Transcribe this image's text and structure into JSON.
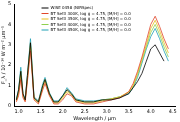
{
  "chart_data": {
    "type": "line",
    "x_label": "Wavelength / μm",
    "y_label": "F_λ / 10⁻¹⁶ W m⁻² μm⁻¹",
    "x": [
      0.95,
      1.0,
      1.05,
      1.1,
      1.15,
      1.2,
      1.27,
      1.35,
      1.45,
      1.55,
      1.6,
      1.7,
      1.8,
      1.9,
      2.0,
      2.1,
      2.2,
      2.3,
      2.5,
      2.7,
      2.9,
      3.1,
      3.3,
      3.5,
      3.6,
      3.7,
      3.8,
      3.9,
      4.0,
      4.1,
      4.2,
      4.3,
      4.4
    ],
    "series": [
      {
        "name": "WISE 0458 (NIRSpec)",
        "color": "#000000",
        "values": [
          0.3,
          0.8,
          1.7,
          0.6,
          0.3,
          1.5,
          3.1,
          0.4,
          0.2,
          1.0,
          1.3,
          0.6,
          0.2,
          0.2,
          0.5,
          0.8,
          0.6,
          0.3,
          0.2,
          0.2,
          0.3,
          0.3,
          0.4,
          0.6,
          0.9,
          1.2,
          1.6,
          2.2,
          2.8,
          3.0,
          2.6,
          2.2,
          null
        ]
      },
      {
        "name": "BT Settl 300K, log g = 4.75, [M/H] = 0.0",
        "color": "#e0452a",
        "values": [
          0.2,
          0.5,
          1.3,
          0.4,
          0.2,
          1.2,
          2.7,
          0.3,
          0.1,
          0.8,
          1.1,
          0.5,
          0.1,
          0.1,
          0.3,
          0.6,
          0.5,
          0.2,
          0.1,
          0.1,
          0.2,
          0.3,
          0.4,
          0.7,
          1.1,
          1.7,
          2.4,
          3.2,
          4.0,
          4.4,
          3.9,
          3.3,
          2.8
        ]
      },
      {
        "name": "BT Settl 350K, log g = 4.75, [M/H] = 0.0",
        "color": "#e8c020",
        "values": [
          0.25,
          0.6,
          1.5,
          0.5,
          0.25,
          1.3,
          2.9,
          0.35,
          0.15,
          0.9,
          1.2,
          0.55,
          0.15,
          0.15,
          0.4,
          0.7,
          0.55,
          0.25,
          0.15,
          0.15,
          0.25,
          0.35,
          0.45,
          0.7,
          1.0,
          1.6,
          2.3,
          3.0,
          3.8,
          4.2,
          3.7,
          3.1,
          2.6
        ]
      },
      {
        "name": "BT Settl 400K, log g = 4.75, [M/H] = 0.0",
        "color": "#8fd14f",
        "values": [
          0.3,
          0.7,
          1.7,
          0.55,
          0.3,
          1.4,
          3.1,
          0.4,
          0.2,
          1.0,
          1.3,
          0.6,
          0.2,
          0.2,
          0.45,
          0.8,
          0.6,
          0.3,
          0.2,
          0.2,
          0.3,
          0.35,
          0.45,
          0.65,
          0.95,
          1.5,
          2.2,
          2.9,
          3.6,
          4.0,
          3.5,
          2.9,
          2.4
        ]
      },
      {
        "name": "BT Settl 450K, log g = 4.75, [M/H] = 0.0",
        "color": "#1fa0b4",
        "values": [
          0.35,
          0.8,
          1.9,
          0.6,
          0.35,
          1.5,
          3.3,
          0.45,
          0.25,
          1.1,
          1.4,
          0.65,
          0.25,
          0.25,
          0.5,
          0.9,
          0.65,
          0.35,
          0.25,
          0.25,
          0.3,
          0.35,
          0.45,
          0.6,
          0.9,
          1.4,
          2.1,
          2.8,
          3.4,
          3.8,
          3.3,
          2.7,
          2.2
        ]
      }
    ],
    "xlim": [
      0.9,
      4.55
    ],
    "xticks": [
      {
        "value": 1,
        "label": "1.0"
      },
      {
        "value": 1.5,
        "label": "1.5"
      },
      {
        "value": 2,
        "label": "2.0"
      },
      {
        "value": 2.5,
        "label": "2.5"
      },
      {
        "value": 3,
        "label": "3.0"
      },
      {
        "value": 3.5,
        "label": "3.5"
      },
      {
        "value": 4,
        "label": "4.0"
      },
      {
        "value": 4.5,
        "label": "4.5"
      }
    ],
    "ylim": [
      0,
      5
    ],
    "yticks": [
      0,
      1,
      2,
      3,
      4,
      5
    ],
    "grid": false,
    "legend": "upper center"
  }
}
